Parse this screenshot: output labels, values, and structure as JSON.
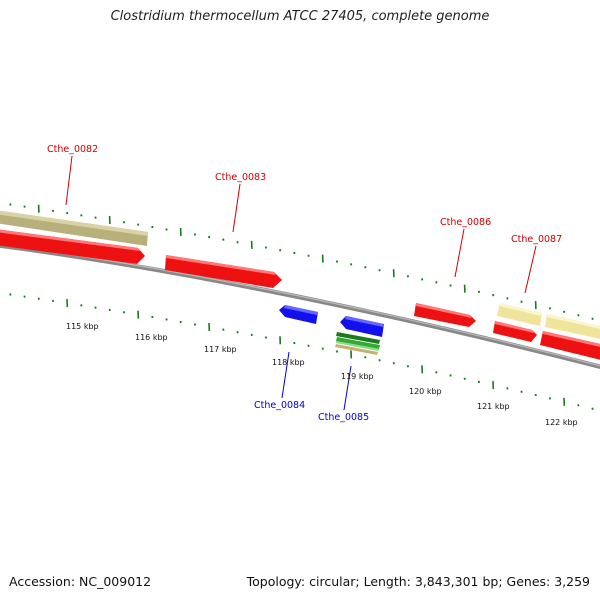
{
  "title": "Clostridium thermocellum ATCC 27405, complete genome",
  "footer": {
    "accession": "Accession: NC_009012",
    "stats": "Topology: circular; Length: 3,843,301 bp; Genes: 3,259"
  },
  "colors": {
    "forward_cds": "#ee1111",
    "reverse_cds": "#1111ee",
    "forward_label": "#cc0000",
    "reverse_label": "#0000cc",
    "olive_feature": "#b8b07a",
    "pale_feature": "#efe49a",
    "green_feature": "#2a9a2a",
    "backbone": "#888888",
    "ticks": "#1a7a1a"
  },
  "scale_labels": [
    "115 kbp",
    "116 kbp",
    "117 kbp",
    "118 kbp",
    "119 kbp",
    "120 kbp",
    "121 kbp",
    "122 kbp"
  ],
  "gene_labels": {
    "cthe_0082": "Cthe_0082",
    "cthe_0083": "Cthe_0083",
    "cthe_0084": "Cthe_0084",
    "cthe_0085": "Cthe_0085",
    "cthe_0086": "Cthe_0086",
    "cthe_0087": "Cthe_0087"
  }
}
